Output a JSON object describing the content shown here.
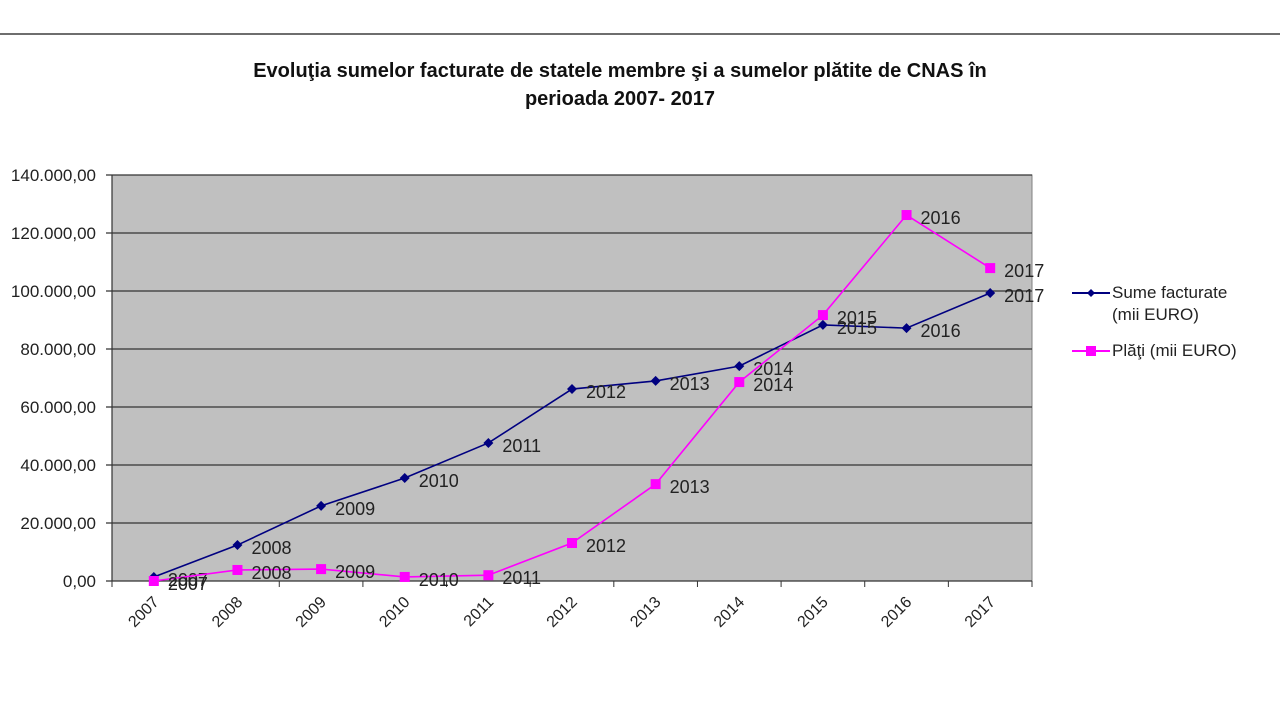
{
  "chart_data": {
    "type": "line",
    "title": "Evoluţia sumelor facturate de statele membre şi a sumelor plătite de CNAS în perioada 2007- 2017",
    "title_lines": [
      "Evoluţia sumelor facturate de statele membre şi a sumelor plătite de CNAS în",
      "perioada 2007- 2017"
    ],
    "xlabel": "",
    "ylabel": "",
    "categories": [
      "2007",
      "2008",
      "2009",
      "2010",
      "2011",
      "2012",
      "2013",
      "2014",
      "2015",
      "2016",
      "2017"
    ],
    "y_tick_labels": [
      "0,00",
      "20.000,00",
      "40.000,00",
      "60.000,00",
      "80.000,00",
      "100.000,00",
      "120.000,00",
      "140.000,00"
    ],
    "ylim": [
      0,
      140000
    ],
    "grid": true,
    "plot_background": "#c0c0c0",
    "legend_position": "right",
    "series": [
      {
        "name": "Sume facturate (mii EURO)",
        "legend_lines": [
          "Sume facturate",
          "(mii EURO)"
        ],
        "color": "#000080",
        "marker": "diamond",
        "values": [
          1400,
          12400,
          25900,
          35500,
          47600,
          66200,
          69000,
          74100,
          88300,
          87200,
          99300
        ],
        "data_labels": [
          "2007",
          "2008",
          "2009",
          "2010",
          "2011",
          "2012",
          "2013",
          "2014",
          "2015",
          "2016",
          "2017"
        ]
      },
      {
        "name": "Plăţi (mii EURO)",
        "legend_lines": [
          "Plăţi (mii EURO)"
        ],
        "color": "#ff00ff",
        "marker": "square",
        "values": [
          0,
          3800,
          4100,
          1400,
          2000,
          13100,
          33400,
          68600,
          91700,
          126200,
          107900
        ],
        "data_labels": [
          "2007",
          "2008",
          "2009",
          "2010",
          "2011",
          "2012",
          "2013",
          "2014",
          "2015",
          "2016",
          "2017"
        ]
      }
    ]
  }
}
